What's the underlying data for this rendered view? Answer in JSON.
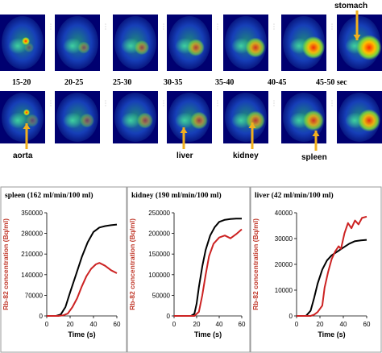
{
  "figure": {
    "time_labels": [
      "15-20",
      "20-25",
      "25-30",
      "30-35",
      "35-40",
      "40-45",
      "45-50 sec"
    ],
    "organ_labels": {
      "stomach": "stomach",
      "aorta": "aorta",
      "liver": "liver",
      "kidney": "kidney",
      "spleen": "spleen"
    },
    "colors": {
      "arrow": "#f2b01e",
      "blood_curve": "#000000",
      "tissue_curve": "#cc2222",
      "ylabel": "#c0392b",
      "panel_border": "#999999"
    }
  },
  "chart_data": [
    {
      "type": "line",
      "title": "spleen (162 ml/min/100 ml)",
      "xlabel": "Time (s)",
      "ylabel": "Rb-82 concentration (Bq/ml)",
      "xlim": [
        0,
        60
      ],
      "ylim": [
        0,
        350000
      ],
      "xticks": [
        0,
        20,
        40,
        60
      ],
      "yticks": [
        0,
        70000,
        140000,
        210000,
        280000,
        350000
      ],
      "ytick_labels": [
        "0",
        "70000",
        "140000",
        "210000",
        "280000",
        "350000"
      ],
      "series": [
        {
          "color": "#000000",
          "x": [
            0,
            8,
            12,
            16,
            20,
            25,
            30,
            35,
            40,
            45,
            50,
            55,
            60
          ],
          "y": [
            0,
            0,
            5000,
            30000,
            80000,
            140000,
            200000,
            250000,
            285000,
            300000,
            305000,
            308000,
            310000
          ]
        },
        {
          "color": "#cc2222",
          "x": [
            0,
            10,
            14,
            18,
            22,
            26,
            30,
            34,
            38,
            42,
            45,
            50,
            55,
            60
          ],
          "y": [
            0,
            0,
            2000,
            8000,
            30000,
            60000,
            100000,
            135000,
            160000,
            175000,
            180000,
            170000,
            155000,
            145000
          ]
        }
      ]
    },
    {
      "type": "line",
      "title": "kidney (190 ml/min/100 ml)",
      "xlabel": "Time (s)",
      "ylabel": "Rb-82 concentration (Bq/ml)",
      "xlim": [
        0,
        60
      ],
      "ylim": [
        0,
        250000
      ],
      "xticks": [
        0,
        20,
        40,
        60
      ],
      "yticks": [
        0,
        50000,
        100000,
        150000,
        200000,
        250000
      ],
      "ytick_labels": [
        "0",
        "50000",
        "100000",
        "150000",
        "200000",
        "250000"
      ],
      "series": [
        {
          "color": "#000000",
          "x": [
            0,
            15,
            18,
            20,
            22,
            25,
            28,
            32,
            36,
            40,
            45,
            50,
            55,
            60
          ],
          "y": [
            0,
            0,
            5000,
            30000,
            70000,
            120000,
            160000,
            195000,
            215000,
            228000,
            233000,
            235000,
            236000,
            236000
          ]
        },
        {
          "color": "#cc2222",
          "x": [
            0,
            18,
            22,
            25,
            28,
            31,
            35,
            40,
            45,
            50,
            55,
            60
          ],
          "y": [
            0,
            0,
            10000,
            50000,
            100000,
            145000,
            175000,
            190000,
            195000,
            188000,
            198000,
            210000
          ]
        }
      ]
    },
    {
      "type": "line",
      "title": "liver (42 ml/min/100 ml)",
      "xlabel": "Time (s)",
      "ylabel": "Rb-82 concentration (Bq/ml)",
      "xlim": [
        0,
        60
      ],
      "ylim": [
        0,
        40000
      ],
      "xticks": [
        0,
        20,
        40,
        60
      ],
      "yticks": [
        0,
        10000,
        20000,
        30000,
        40000
      ],
      "ytick_labels": [
        "0",
        "10000",
        "20000",
        "30000",
        "40000"
      ],
      "series": [
        {
          "color": "#000000",
          "x": [
            0,
            8,
            12,
            15,
            18,
            22,
            26,
            30,
            35,
            40,
            45,
            50,
            55,
            60
          ],
          "y": [
            0,
            0,
            2000,
            7000,
            12500,
            18000,
            21500,
            23500,
            25000,
            26500,
            28000,
            29000,
            29300,
            29500
          ]
        },
        {
          "color": "#cc2222",
          "x": [
            0,
            12,
            15,
            18,
            22,
            24,
            27,
            30,
            33,
            36,
            38,
            41,
            44,
            47,
            50,
            53,
            56,
            60
          ],
          "y": [
            0,
            0,
            500,
            1500,
            4000,
            11000,
            17000,
            22000,
            25000,
            27000,
            26000,
            32000,
            36000,
            34000,
            37000,
            35500,
            38000,
            38500
          ]
        }
      ]
    }
  ]
}
